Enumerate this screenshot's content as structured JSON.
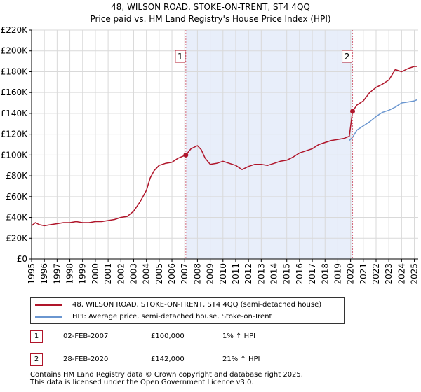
{
  "chart_title": {
    "line1": "48, WILSON ROAD, STOKE-ON-TRENT, ST4 4QQ",
    "line2": "Price paid vs. HM Land Registry's House Price Index (HPI)"
  },
  "colors": {
    "property_line": "#b0152a",
    "hpi_line": "#6a96d0",
    "shade": "#e8eefa",
    "sale_marker_line": "#d46a7a",
    "grid": "#d9d9d9"
  },
  "chart_data": {
    "type": "line",
    "title": "48, WILSON ROAD, STOKE-ON-TRENT, ST4 4QQ — Price paid vs. HM Land Registry's House Price Index (HPI)",
    "xlabel": "",
    "ylabel": "",
    "xlim": [
      1995,
      2025.3
    ],
    "ylim": [
      0,
      220000
    ],
    "x_ticks": [
      1995,
      1996,
      1997,
      1998,
      1999,
      2000,
      2001,
      2002,
      2003,
      2004,
      2005,
      2006,
      2007,
      2008,
      2009,
      2010,
      2011,
      2012,
      2013,
      2014,
      2015,
      2016,
      2017,
      2018,
      2019,
      2020,
      2021,
      2022,
      2023,
      2024,
      2025
    ],
    "y_ticks": [
      {
        "value": 0,
        "label": "£0"
      },
      {
        "value": 20000,
        "label": "£20K"
      },
      {
        "value": 40000,
        "label": "£40K"
      },
      {
        "value": 60000,
        "label": "£60K"
      },
      {
        "value": 80000,
        "label": "£80K"
      },
      {
        "value": 100000,
        "label": "£100K"
      },
      {
        "value": 120000,
        "label": "£120K"
      },
      {
        "value": 140000,
        "label": "£140K"
      },
      {
        "value": 160000,
        "label": "£160K"
      },
      {
        "value": 180000,
        "label": "£180K"
      },
      {
        "value": 200000,
        "label": "£200K"
      },
      {
        "value": 220000,
        "label": "£220K"
      }
    ],
    "grid": true,
    "shaded_range": [
      2007.09,
      2020.16
    ],
    "series": [
      {
        "name": "48, WILSON ROAD, STOKE-ON-TRENT, ST4 4QQ (semi-detached house)",
        "x": [
          1995.0,
          1995.3,
          1995.6,
          1996.0,
          1996.5,
          1997.0,
          1997.5,
          1998.0,
          1998.5,
          1999.0,
          1999.5,
          2000.0,
          2000.5,
          2001.0,
          2001.5,
          2002.0,
          2002.5,
          2003.0,
          2003.5,
          2004.0,
          2004.3,
          2004.6,
          2005.0,
          2005.5,
          2006.0,
          2006.5,
          2007.09,
          2007.5,
          2008.0,
          2008.3,
          2008.6,
          2009.0,
          2009.5,
          2010.0,
          2010.5,
          2011.0,
          2011.5,
          2012.0,
          2012.5,
          2013.0,
          2013.5,
          2014.0,
          2014.5,
          2015.0,
          2015.5,
          2016.0,
          2016.5,
          2017.0,
          2017.5,
          2018.0,
          2018.5,
          2019.0,
          2019.5,
          2019.9,
          2020.16,
          2020.5,
          2021.0,
          2021.5,
          2022.0,
          2022.5,
          2023.0,
          2023.5,
          2024.0,
          2024.5,
          2025.0,
          2025.2
        ],
        "y": [
          32000,
          35000,
          33000,
          32000,
          33000,
          34000,
          35000,
          35000,
          36000,
          35000,
          35000,
          36000,
          36000,
          37000,
          38000,
          40000,
          41000,
          46000,
          55000,
          66000,
          78000,
          85000,
          90000,
          92000,
          93000,
          97000,
          100000,
          106000,
          109000,
          105000,
          97000,
          91000,
          92000,
          94000,
          92000,
          90000,
          86000,
          89000,
          91000,
          91000,
          90000,
          92000,
          94000,
          95000,
          98000,
          102000,
          104000,
          106000,
          110000,
          112000,
          114000,
          115000,
          116000,
          118000,
          142000,
          148000,
          152000,
          160000,
          165000,
          168000,
          172000,
          182000,
          180000,
          183000,
          185000,
          185000
        ]
      },
      {
        "name": "HPI: Average price, semi-detached house, Stoke-on-Trent",
        "x": [
          2019.9,
          2020.16,
          2020.5,
          2021.0,
          2021.5,
          2022.0,
          2022.5,
          2023.0,
          2023.5,
          2024.0,
          2024.5,
          2025.0,
          2025.2
        ],
        "y": [
          114000,
          117000,
          124000,
          128000,
          132000,
          137000,
          141000,
          143000,
          146000,
          150000,
          151000,
          152000,
          153000
        ]
      }
    ],
    "sales": [
      {
        "id": "1",
        "year": 2007.09,
        "price": 100000,
        "date": "02-FEB-2007",
        "price_label": "£100,000",
        "hpi_change": "1% ↑ HPI"
      },
      {
        "id": "2",
        "year": 2020.16,
        "price": 142000,
        "date": "28-FEB-2020",
        "price_label": "£142,000",
        "hpi_change": "21% ↑ HPI"
      }
    ]
  },
  "legend": {
    "property_label": "48, WILSON ROAD, STOKE-ON-TRENT, ST4 4QQ (semi-detached house)",
    "hpi_label": "HPI: Average price, semi-detached house, Stoke-on-Trent"
  },
  "footer": {
    "line1": "Contains HM Land Registry data © Crown copyright and database right 2025.",
    "line2": "This data is licensed under the Open Government Licence v3.0."
  }
}
